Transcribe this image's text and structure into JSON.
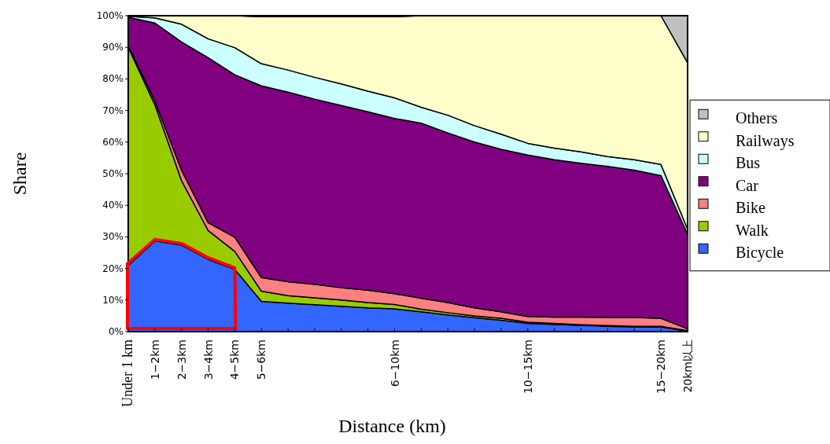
{
  "chart_data": {
    "type": "area",
    "stacked": true,
    "xlabel": "Distance (km)",
    "ylabel": "Share",
    "categories": [
      "Under 1 km",
      "1−2km",
      "2−3km",
      "3−4km",
      "4−5km",
      "5−6km",
      null,
      null,
      null,
      null,
      "6−10km",
      null,
      null,
      null,
      null,
      "10−15km",
      null,
      null,
      null,
      null,
      "15−20km",
      "20km以上"
    ],
    "ylim": [
      0,
      100
    ],
    "yticks": [
      {
        "value": 0,
        "label": "0%"
      },
      {
        "value": 10,
        "label": "10%"
      },
      {
        "value": 20,
        "label": "20%"
      },
      {
        "value": 30,
        "label": "30%"
      },
      {
        "value": 40,
        "label": "40%"
      },
      {
        "value": 50,
        "label": "50%"
      },
      {
        "value": 60,
        "label": "60%"
      },
      {
        "value": 70,
        "label": "70%"
      },
      {
        "value": 80,
        "label": "80%"
      },
      {
        "value": 90,
        "label": "90%"
      },
      {
        "value": 100,
        "label": "100%"
      }
    ],
    "legend": "right",
    "series": [
      {
        "name": "Bicycle",
        "color": "#3366ff",
        "values": [
          21,
          28.7,
          27.4,
          22.9,
          19.7,
          9.6,
          9.0,
          8.5,
          8.0,
          7.5,
          7.2,
          6.3,
          5.3,
          4.4,
          3.6,
          2.6,
          2.3,
          2.0,
          1.7,
          1.5,
          1.5,
          0.2
        ]
      },
      {
        "name": "Walk",
        "color": "#99cc00",
        "values": [
          69,
          43.1,
          20.4,
          9.1,
          5.7,
          3.2,
          2.4,
          2.2,
          2.0,
          1.7,
          1.4,
          0.8,
          0.7,
          0.6,
          0.6,
          0.4,
          0.3,
          0.2,
          0.2,
          0.2,
          0.2,
          0.1
        ]
      },
      {
        "name": "Bike",
        "color": "#ff8080",
        "values": [
          0.5,
          1.2,
          3.3,
          2.5,
          4.5,
          4.3,
          4.4,
          4.3,
          3.9,
          3.9,
          3.4,
          3.5,
          3.2,
          2.5,
          2.1,
          1.8,
          2.0,
          2.4,
          2.6,
          2.8,
          2.5,
          0.6
        ]
      },
      {
        "name": "Car",
        "color": "#800080",
        "values": [
          9,
          24.7,
          40.6,
          52.2,
          51.4,
          60.7,
          60.0,
          58.6,
          57.7,
          56.5,
          55.5,
          55.4,
          53.7,
          52.5,
          51.4,
          51.1,
          49.8,
          48.7,
          47.8,
          46.6,
          45.2,
          29.9
        ]
      },
      {
        "name": "Bus",
        "color": "#ccffff",
        "values": [
          0.3,
          1.6,
          5.6,
          6.0,
          8.6,
          7.0,
          7.0,
          6.9,
          6.8,
          6.5,
          6.5,
          5.0,
          5.6,
          5.2,
          4.8,
          3.7,
          3.7,
          3.6,
          3.1,
          3.3,
          3.5,
          1.6
        ]
      },
      {
        "name": "Railways",
        "color": "#ffffcc",
        "values": [
          0.2,
          0.7,
          2.7,
          7.3,
          10.1,
          14.9,
          16.9,
          19.2,
          21.3,
          23.6,
          25.7,
          29.0,
          31.5,
          34.8,
          37.5,
          40.4,
          41.9,
          43.1,
          44.6,
          45.6,
          47.1,
          52.7
        ]
      },
      {
        "name": "Others",
        "color": "#c0c0c0",
        "values": [
          0,
          0,
          0,
          0,
          0,
          0,
          0,
          0,
          0,
          0,
          0,
          0,
          0,
          0,
          0,
          0,
          0,
          0,
          0,
          0,
          0,
          14.9
        ]
      }
    ]
  }
}
